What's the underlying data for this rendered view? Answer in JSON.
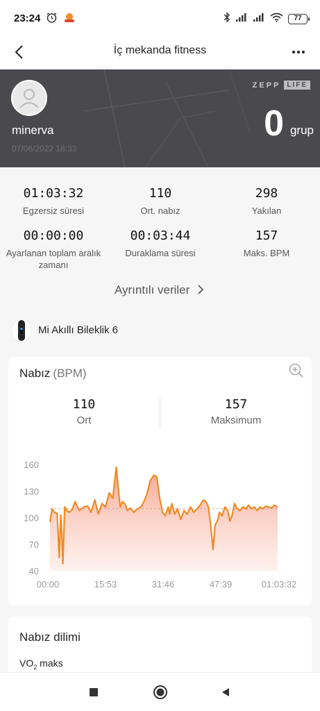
{
  "status_bar": {
    "time": "23:24",
    "battery": "77",
    "icons": [
      "alarm-icon",
      "notification-icon",
      "bluetooth-icon",
      "signal-icon",
      "signal-icon",
      "wifi-icon",
      "battery-icon"
    ]
  },
  "app_bar": {
    "title": "İç mekanda fitness",
    "icons": [
      "back-icon",
      "more-icon"
    ]
  },
  "hero": {
    "username": "minerva",
    "datetime": "07/06/2022 18:33",
    "brand_part1": "ZEPP",
    "brand_part2": "LIFE",
    "value": "0",
    "unit": "grup"
  },
  "stats": [
    {
      "value": "01:03:32",
      "label": "Egzersiz süresi"
    },
    {
      "value": "110",
      "label": "Ort. nabız"
    },
    {
      "value": "298",
      "label": "Yakılan"
    },
    {
      "value": "00:00:00",
      "label": "Ayarlanan toplam aralık zamanı"
    },
    {
      "value": "00:03:44",
      "label": "Duraklama süresi"
    },
    {
      "value": "157",
      "label": "Maks. BPM"
    }
  ],
  "details_link": "Ayrıntılı veriler",
  "device": {
    "name": "Mi Akıllı Bileklik 6"
  },
  "heart_rate": {
    "title": "Nabız",
    "unit": "(BPM)",
    "avg_value": "110",
    "avg_label": "Ort",
    "max_value": "157",
    "max_label": "Maksimum"
  },
  "chart_data": {
    "type": "area",
    "title": "Nabız (BPM)",
    "x_ticks": [
      "00:00",
      "15:53",
      "31:46",
      "47:39",
      "01:03:32"
    ],
    "y_ticks": [
      160,
      130,
      100,
      70,
      40
    ],
    "ylim": [
      40,
      160
    ],
    "xlim_minutes": [
      0,
      63.53
    ],
    "average_line": 110,
    "color": "#f08a24",
    "series": [
      {
        "x_minutes": [
          0,
          0.6,
          1.2,
          2.0,
          2.6,
          3.0,
          3.3,
          3.6,
          4.1,
          4.7,
          5.4,
          6.2,
          7.0,
          8.2,
          9.4,
          10.5,
          11.5,
          12.5,
          13.5,
          14.5,
          15.5,
          16.5,
          17.5,
          18.5,
          19.2,
          19.6,
          20.2,
          21.0,
          21.6,
          22.4,
          23.4,
          24.4,
          25.4,
          26.2,
          27.0,
          28.0,
          29.0,
          29.8,
          30.6,
          31.4,
          32.2,
          33.0,
          33.4,
          34.0,
          34.8,
          35.6,
          36.5,
          37.4,
          38.3,
          39.2,
          40.1,
          41.0,
          41.9,
          42.8,
          43.5,
          44.2,
          44.8,
          45.5,
          46.1,
          46.7,
          47.3,
          48.0,
          48.8,
          49.6,
          50.2,
          50.8,
          51.5,
          52.2,
          53.0,
          53.8,
          54.6,
          55.4,
          56.2,
          57.0,
          57.8,
          58.6,
          59.4,
          60.2,
          61.0,
          61.8,
          62.6,
          63.53
        ],
        "bpm": [
          95,
          110,
          106,
          105,
          55,
          103,
          82,
          48,
          112,
          108,
          106,
          109,
          118,
          108,
          112,
          113,
          106,
          120,
          104,
          116,
          112,
          128,
          122,
          157,
          128,
          112,
          118,
          115,
          108,
          111,
          106,
          110,
          112,
          118,
          126,
          142,
          148,
          146,
          122,
          106,
          102,
          112,
          104,
          116,
          104,
          110,
          98,
          108,
          104,
          112,
          106,
          110,
          114,
          120,
          118,
          112,
          93,
          64,
          92,
          96,
          106,
          102,
          112,
          108,
          96,
          102,
          116,
          110,
          108,
          112,
          110,
          114,
          110,
          112,
          108,
          112,
          110,
          113,
          112,
          111,
          114,
          112
        ]
      }
    ]
  },
  "hr_zone": {
    "title": "Nabız dilimi",
    "vo2_prefix": "VO",
    "vo2_sub": "2",
    "vo2_suffix": " maks"
  },
  "nav_bar": {
    "icons": [
      "recents-icon",
      "home-icon",
      "back-nav-icon"
    ]
  }
}
